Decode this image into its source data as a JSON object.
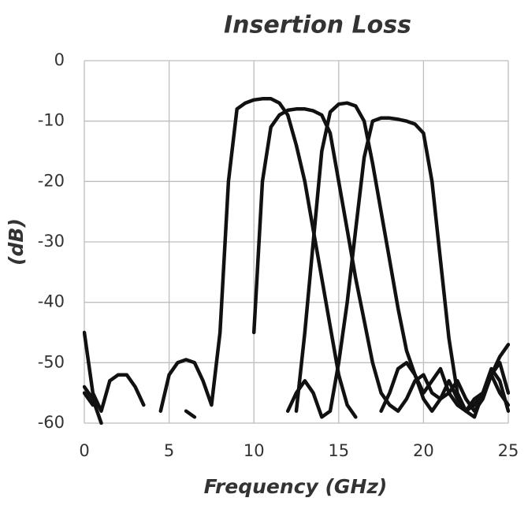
{
  "chart_data": {
    "type": "line",
    "title": "Insertion Loss",
    "x_label": "Frequency (GHz)",
    "y_label": "(dB)",
    "xlim": [
      0,
      25
    ],
    "ylim": [
      -60,
      0
    ],
    "xticks": [
      0,
      5,
      10,
      15,
      20,
      25
    ],
    "yticks": [
      0,
      -10,
      -20,
      -30,
      -40,
      -50,
      -60
    ],
    "grid": true,
    "x": [
      0,
      0.5,
      1,
      1.5,
      2,
      2.5,
      3,
      3.5,
      4,
      4.5,
      5,
      5.5,
      6,
      6.5,
      7,
      7.5,
      8,
      8.5,
      9,
      9.5,
      10,
      10.5,
      11,
      11.5,
      12,
      12.5,
      13,
      13.5,
      14,
      14.5,
      15,
      15.5,
      16,
      16.5,
      17,
      17.5,
      18,
      18.5,
      19,
      19.5,
      20,
      20.5,
      21,
      21.5,
      22,
      22.5,
      23,
      23.5,
      24,
      24.5,
      25
    ],
    "series": [
      {
        "color": "#111111",
        "values": [
          -45,
          -55,
          -58,
          -53,
          -52,
          -52,
          -54,
          -57,
          null,
          -58,
          -52,
          -50,
          -49.5,
          -50,
          -53,
          -57,
          -45,
          -20,
          -8,
          -7,
          -6.5,
          -6.3,
          -6.3,
          -7,
          -9,
          -14,
          -20,
          -28,
          -36,
          -44,
          -52,
          -57,
          -59,
          null,
          null,
          -58,
          -55,
          -51,
          -50,
          -52,
          -55,
          -53,
          -51,
          -55,
          -57,
          -58,
          -57,
          -55,
          -52,
          -49,
          -47
        ]
      },
      {
        "color": "#111111",
        "values": [
          -54,
          -56,
          -60,
          null,
          null,
          null,
          null,
          null,
          null,
          null,
          null,
          null,
          -58,
          -59,
          null,
          null,
          null,
          null,
          null,
          null,
          -45,
          -20,
          -11,
          -9,
          -8.2,
          -8,
          -8,
          -8.3,
          -9,
          -12,
          -20,
          -28,
          -36,
          -43,
          -50,
          -55,
          -57,
          -58,
          -56,
          -53,
          -52,
          -55,
          -56,
          -55,
          -53,
          -56,
          -58,
          -56,
          -52,
          -50,
          -55
        ]
      },
      {
        "color": "#111111",
        "values": [
          -55,
          -57,
          null,
          null,
          null,
          null,
          null,
          null,
          null,
          null,
          null,
          null,
          null,
          null,
          null,
          null,
          null,
          null,
          null,
          null,
          null,
          null,
          null,
          null,
          null,
          -58,
          -45,
          -30,
          -15,
          -8.5,
          -7.2,
          -7,
          -7.5,
          -10,
          -17,
          -25,
          -33,
          -41,
          -48,
          -52,
          -56,
          -58,
          -56,
          -53,
          -56,
          -58,
          -59,
          -55,
          -51,
          -53,
          -58
        ]
      },
      {
        "color": "#111111",
        "values": [
          null,
          null,
          null,
          null,
          null,
          null,
          null,
          null,
          null,
          null,
          null,
          null,
          null,
          null,
          null,
          null,
          null,
          null,
          null,
          null,
          null,
          null,
          null,
          null,
          -58,
          -55,
          -53,
          -55,
          -59,
          -58,
          -50,
          -40,
          -28,
          -16,
          -10,
          -9.5,
          -9.5,
          -9.7,
          -10,
          -10.5,
          -12,
          -20,
          -33,
          -46,
          -55,
          -58,
          -56,
          -55,
          -52,
          -55,
          -57
        ]
      }
    ]
  }
}
